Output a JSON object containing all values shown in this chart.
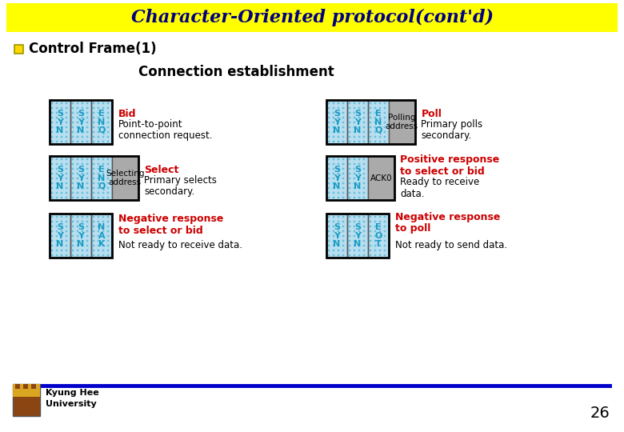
{
  "title": "Character-Oriented protocol(cont'd)",
  "title_bg": "#FFFF00",
  "title_color": "#000080",
  "bullet_text": "Control Frame(1)",
  "section_title": "Connection establishment",
  "bg_color": "#FFFFFF",
  "cyan_color": "#1A9CC4",
  "cyan_bg": "#B8DFF0",
  "gray_bg": "#AAAAAA",
  "red_color": "#CC0000",
  "black_color": "#000000",
  "blue_line_color": "#0000CC",
  "page_number": "26",
  "univ_name": "Kyung Hee\nUniversity",
  "rows": [
    {
      "left_cells": [
        "S\nY\nN",
        "S\nY\nN",
        "E\nN\nQ"
      ],
      "left_extra": null,
      "left_extra_text": "",
      "title_text": "Bid",
      "desc_text": "Point-to-point\nconnection request.",
      "right_cells": [
        "S\nY\nN",
        "S\nY\nN",
        "E\nN\nQ"
      ],
      "right_extra": "gray",
      "right_extra_text": "Polling\naddress",
      "right_title": "Poll",
      "right_desc": "Primary polls\nsecondary."
    },
    {
      "left_cells": [
        "S\nY\nN",
        "S\nY\nN",
        "E\nN\nQ"
      ],
      "left_extra": "gray",
      "left_extra_text": "Selecting\naddress",
      "title_text": "Select",
      "desc_text": "Primary selects\nsecondary.",
      "right_cells": [
        "S\nY\nN",
        "S\nY\nN"
      ],
      "right_extra": "gray",
      "right_extra_text": "ACK0",
      "right_title": "Positive response\nto select or bid",
      "right_desc": "Ready to receive\ndata."
    },
    {
      "left_cells": [
        "S\nY\nN",
        "S\nY\nN",
        "N\nA\nK"
      ],
      "left_extra": null,
      "left_extra_text": "",
      "title_text": "Negative response\nto select or bid",
      "desc_text": "Not ready to receive data.",
      "right_cells": [
        "S\nY\nN",
        "S\nY\nN",
        "E\nO\nT"
      ],
      "right_extra": null,
      "right_extra_text": "",
      "right_title": "Negative response\nto poll",
      "right_desc": "Not ready to send data."
    }
  ]
}
